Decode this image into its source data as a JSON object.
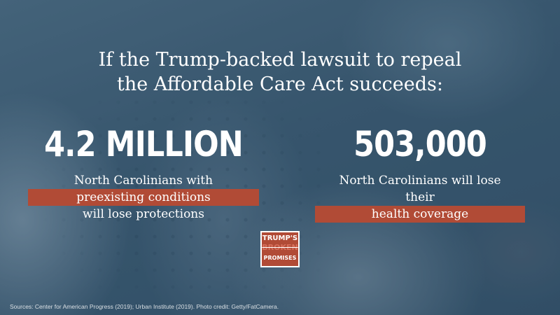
{
  "headline": {
    "line1": "If the Trump-backed lawsuit to repeal",
    "line2": "the Affordable Care Act succeeds:"
  },
  "stat_left": {
    "value": "4.2 MILLION",
    "line1": "North Carolinians with",
    "highlight": "preexisting conditions",
    "line3": "will lose protections"
  },
  "stat_right": {
    "value": "503,000",
    "line1": "North Carolinians will lose",
    "prefix": "their",
    "highlight": "health coverage"
  },
  "logo": {
    "line1": "TRUMP'S",
    "line2": "BROKEN",
    "line3": "PROMISES"
  },
  "source": "Sources: Center for American Progress (2019); Urban Institute (2019). Photo credit: Getty/FatCamera.",
  "colors": {
    "highlight": "#b14b36",
    "background": "#3d5c73",
    "text": "#ffffff"
  }
}
